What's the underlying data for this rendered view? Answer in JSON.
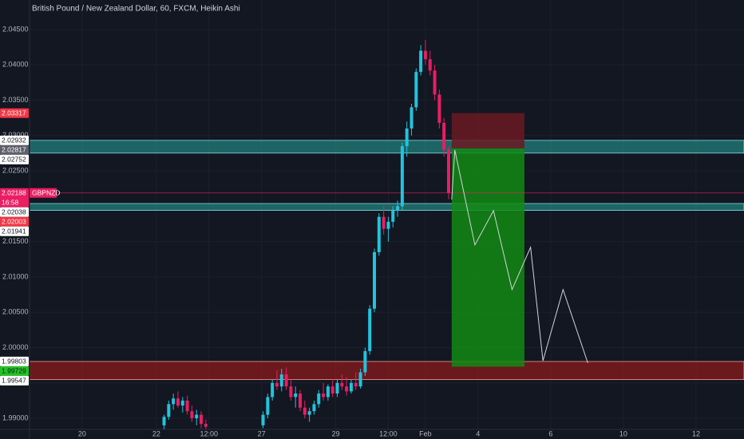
{
  "chart_data": {
    "type": "candlestick",
    "title": "British Pound / New Zealand Dollar, 60, FXCM, Heikin Ashi",
    "up_color": "#22c4dc",
    "down_color": "#e91e63",
    "grid": true,
    "ylim": [
      1.98842,
      2.04918
    ],
    "yticks": [
      {
        "value": 1.99,
        "label": "1.99000"
      },
      {
        "value": 1.995,
        "label": "1.99500"
      },
      {
        "value": 2.0,
        "label": "2.00000"
      },
      {
        "value": 2.005,
        "label": "2.00500"
      },
      {
        "value": 2.01,
        "label": "2.01000"
      },
      {
        "value": 2.015,
        "label": "2.01500"
      },
      {
        "value": 2.02,
        "label": "2.02000"
      },
      {
        "value": 2.025,
        "label": "2.02500"
      },
      {
        "value": 2.03,
        "label": "2.03000"
      },
      {
        "value": 2.035,
        "label": "2.03500"
      },
      {
        "value": 2.04,
        "label": "2.04000"
      },
      {
        "value": 2.045,
        "label": "2.04500"
      }
    ],
    "xlim": [
      0,
      462
    ],
    "xticks": [
      {
        "value": 34,
        "label": "20"
      },
      {
        "value": 82,
        "label": "22"
      },
      {
        "value": 116,
        "label": "12:00"
      },
      {
        "value": 150,
        "label": "27"
      },
      {
        "value": 198,
        "label": "29"
      },
      {
        "value": 232,
        "label": "12:00"
      },
      {
        "value": 256,
        "label": "Feb"
      },
      {
        "value": 290,
        "label": "4"
      },
      {
        "value": 337,
        "label": "6"
      },
      {
        "value": 384,
        "label": "10"
      },
      {
        "value": 431,
        "label": "12"
      }
    ],
    "x": [
      87,
      90,
      93,
      96,
      99,
      102,
      105,
      108,
      111,
      114,
      151,
      154,
      157,
      160,
      163,
      166,
      169,
      172,
      175,
      178,
      181,
      184,
      187,
      190,
      193,
      196,
      199,
      202,
      205,
      208,
      211,
      214,
      217,
      220,
      223,
      226,
      229,
      232,
      235,
      238,
      241,
      244,
      247,
      250,
      253,
      256,
      259,
      262,
      265,
      268,
      271
    ],
    "open": [
      1.989,
      1.9902,
      1.992,
      1.9928,
      1.9918,
      1.9925,
      1.991,
      1.99,
      1.9905,
      1.9892,
      1.989,
      1.9905,
      1.993,
      1.995,
      1.9945,
      1.9962,
      1.9945,
      1.993,
      1.9935,
      1.9915,
      1.9905,
      1.991,
      1.992,
      1.9935,
      1.993,
      1.9945,
      1.9935,
      1.995,
      1.9945,
      1.9938,
      1.995,
      1.9945,
      1.9965,
      1.9995,
      2.0055,
      2.0135,
      2.0185,
      2.0168,
      2.0178,
      2.0195,
      2.02,
      2.0285,
      2.031,
      2.034,
      2.039,
      2.042,
      2.0408,
      2.0392,
      2.0358,
      2.0318,
      2.028
    ],
    "high": [
      1.9905,
      1.9925,
      1.9935,
      1.9938,
      1.993,
      1.9932,
      1.9918,
      1.9912,
      1.991,
      1.9898,
      1.991,
      1.9935,
      1.9955,
      1.9968,
      1.997,
      1.9972,
      1.9955,
      1.9945,
      1.994,
      1.9925,
      1.9915,
      1.9925,
      1.994,
      1.995,
      1.9948,
      1.9955,
      1.9955,
      1.9962,
      1.9958,
      1.9955,
      1.9965,
      1.997,
      2.0,
      2.006,
      2.014,
      2.019,
      2.02,
      2.0185,
      2.02,
      2.0208,
      2.029,
      2.032,
      2.0345,
      2.0395,
      2.0428,
      2.0435,
      2.042,
      2.04,
      2.0365,
      2.0325,
      2.0285
    ],
    "low": [
      1.9884,
      1.9898,
      1.9912,
      1.9915,
      1.9908,
      1.9905,
      1.9895,
      1.989,
      1.9886,
      1.9884,
      1.9886,
      1.99,
      1.9925,
      1.994,
      1.9938,
      1.994,
      1.9925,
      1.9915,
      1.991,
      1.99,
      1.9895,
      1.9905,
      1.9915,
      1.9925,
      1.9925,
      1.993,
      1.993,
      1.994,
      1.9932,
      1.9935,
      1.994,
      1.9942,
      1.996,
      1.999,
      2.005,
      2.013,
      2.016,
      2.015,
      2.017,
      2.0185,
      2.0195,
      2.027,
      2.03,
      2.0335,
      2.0385,
      2.04,
      2.0385,
      2.035,
      2.031,
      2.027,
      2.021
    ],
    "close": [
      1.9902,
      1.992,
      1.9928,
      1.9918,
      1.9925,
      1.991,
      1.99,
      1.9905,
      1.9892,
      1.9888,
      1.9905,
      1.993,
      1.995,
      1.9945,
      1.9962,
      1.9945,
      1.993,
      1.9935,
      1.9915,
      1.9905,
      1.991,
      1.992,
      1.9935,
      1.993,
      1.9945,
      1.9935,
      1.995,
      1.9945,
      1.9938,
      1.995,
      1.9945,
      1.9965,
      1.9995,
      2.0055,
      2.0135,
      2.0185,
      2.0168,
      2.0178,
      2.0195,
      2.02,
      2.0285,
      2.031,
      2.034,
      2.039,
      2.042,
      2.0408,
      2.0392,
      2.0358,
      2.0318,
      2.028,
      2.0219
    ],
    "zones": [
      {
        "top": 2.02932,
        "bottom": 2.02752,
        "color": "#26a69a"
      },
      {
        "top": 2.02038,
        "bottom": 2.01941,
        "color": "#26a69a"
      },
      {
        "top": 1.99803,
        "bottom": 1.99547,
        "color": "#b71c1c"
      }
    ],
    "position": {
      "x": [
        273,
        320
      ],
      "entry": 2.02817,
      "stop": 2.03317,
      "target": 1.99729,
      "stop_color": "#6b1a22",
      "target_color": "#138a13"
    },
    "projection": {
      "color": "#d1d4dc",
      "x": [
        273,
        275,
        288,
        300,
        312,
        324,
        332,
        345,
        361
      ],
      "y": [
        2.02096,
        2.02796,
        2.01453,
        2.01938,
        2.00821,
        2.01419,
        1.99813,
        2.00821,
        1.99782
      ]
    },
    "current_price": {
      "value": 2.02188,
      "color": "#e91e63"
    },
    "price_tags": [
      {
        "value": 2.03317,
        "bg": "#f23645",
        "fg": "#ffffff"
      },
      {
        "value": 2.02932,
        "bg": "#ffffff",
        "fg": "#131722"
      },
      {
        "value": 2.02817,
        "bg": "#5d606b",
        "fg": "#ffffff"
      },
      {
        "value": 2.02752,
        "bg": "#ffffff",
        "fg": "#131722"
      },
      {
        "value": 2.02188,
        "bg": "#e91e63",
        "fg": "#ffffff",
        "name": "GBPNZD",
        "countdown": "16:58"
      },
      {
        "value": 2.02038,
        "bg": "#ffffff",
        "fg": "#131722"
      },
      {
        "value": 2.02003,
        "bg": "#f23645",
        "fg": "#ffffff"
      },
      {
        "value": 2.01941,
        "bg": "#ffffff",
        "fg": "#131722"
      },
      {
        "value": 1.99803,
        "bg": "#ffffff",
        "fg": "#131722"
      },
      {
        "value": 1.99729,
        "bg": "#22c322",
        "fg": "#131722"
      },
      {
        "value": 1.99547,
        "bg": "#ffffff",
        "fg": "#131722"
      }
    ]
  }
}
